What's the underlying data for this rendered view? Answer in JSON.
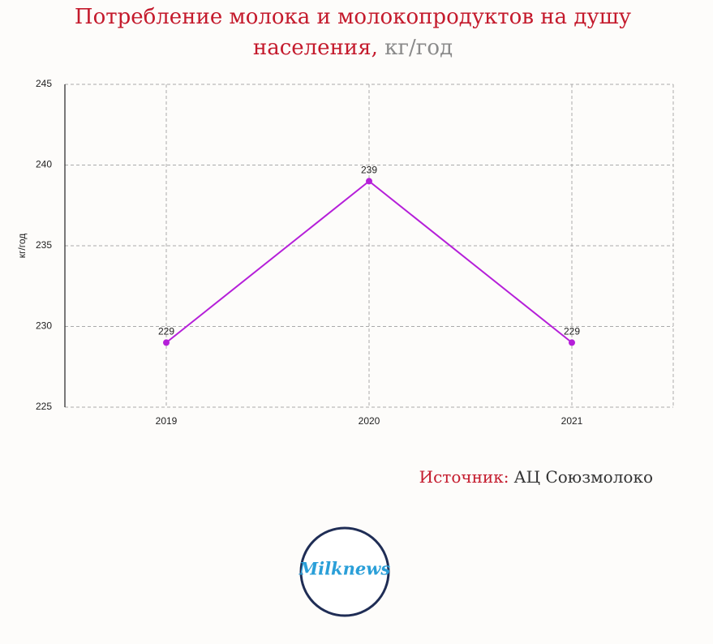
{
  "chart_data": {
    "type": "line",
    "title": "Потребление молока и молокопродуктов на душу населения,",
    "title_unit": "кг/год",
    "y_label": "кг/год",
    "categories": [
      "2019",
      "2020",
      "2021"
    ],
    "values": [
      229,
      239,
      229
    ],
    "color": "#b51fd9",
    "ylim": [
      225,
      245
    ],
    "yticks": [
      225,
      230,
      235,
      240,
      245
    ],
    "grid": true,
    "source_label": "Источник:",
    "source": "АЦ Союзмолоко"
  },
  "logo": "Milknews"
}
